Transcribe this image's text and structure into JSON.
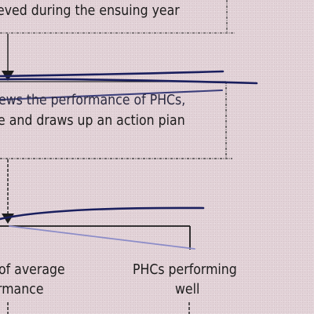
{
  "diagram": {
    "top_box": {
      "text": "eved during the ensuing year"
    },
    "review_box": {
      "line1": "ews the performance of PHCs,",
      "line2": "e and draws up an action pian"
    },
    "outcome_left": {
      "line1": "of average",
      "line2": "rmance"
    },
    "outcome_right": {
      "line1": "PHCs performing",
      "line2": "well"
    }
  },
  "colors": {
    "paper": "#e3d3d8",
    "print": "#1c1c1c",
    "ink_dark": "#1a1f5e",
    "ink_light": "#8c8cc8"
  }
}
